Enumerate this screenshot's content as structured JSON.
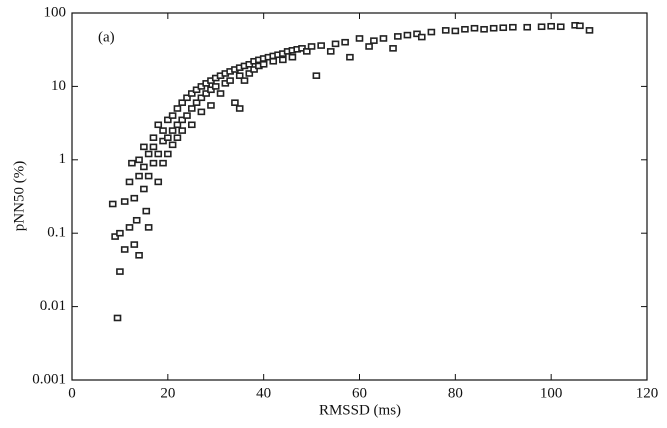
{
  "chart_data": {
    "type": "scatter",
    "annotation": "(a)",
    "x_label": "RMSSD (ms)",
    "y_label": "pNN50 (%)",
    "xlim": [
      0,
      120
    ],
    "xticks": [
      0,
      20,
      40,
      60,
      80,
      100,
      120
    ],
    "ylim": [
      0.001,
      100
    ],
    "yticks": [
      0.001,
      0.01,
      0.1,
      1,
      10,
      100
    ],
    "ylog": true,
    "color": "#222222",
    "x": [
      8.5,
      9,
      9.5,
      10,
      10,
      11,
      11,
      12,
      12,
      12.5,
      13,
      13,
      13.5,
      14,
      14,
      14,
      15,
      15,
      15,
      15.5,
      16,
      16,
      16,
      17,
      17,
      17,
      18,
      18,
      18,
      19,
      19,
      19,
      20,
      20,
      20,
      21,
      21,
      21,
      22,
      22,
      22,
      23,
      23,
      23,
      24,
      24,
      25,
      25,
      25,
      26,
      26,
      27,
      27,
      27,
      28,
      28,
      29,
      29,
      29,
      30,
      30,
      31,
      31,
      32,
      32,
      33,
      33,
      34,
      34,
      35,
      35,
      35,
      36,
      36,
      37,
      37,
      38,
      38,
      39,
      39,
      40,
      40,
      41,
      42,
      42,
      43,
      44,
      44,
      45,
      46,
      46,
      47,
      48,
      49,
      50,
      51,
      52,
      54,
      55,
      57,
      58,
      60,
      62,
      63,
      65,
      67,
      68,
      70,
      72,
      73,
      75,
      78,
      80,
      82,
      84,
      86,
      88,
      90,
      92,
      95,
      98,
      100,
      102,
      105,
      106,
      108
    ],
    "values": [
      0.25,
      0.09,
      0.007,
      0.03,
      0.1,
      0.27,
      0.06,
      0.12,
      0.5,
      0.9,
      0.3,
      0.07,
      0.15,
      0.05,
      0.6,
      1.0,
      0.4,
      0.8,
      1.5,
      0.2,
      0.12,
      1.2,
      0.6,
      2,
      0.9,
      1.5,
      3,
      1.2,
      0.5,
      2.5,
      1.8,
      0.9,
      3.5,
      2,
      1.2,
      4,
      2.5,
      1.6,
      5,
      3,
      2,
      6,
      3.5,
      2.5,
      7,
      4,
      8,
      5,
      3,
      9,
      6,
      10,
      7,
      4.5,
      11,
      8,
      12,
      9,
      5.5,
      13,
      10,
      14,
      8,
      15,
      11,
      16,
      12,
      17,
      6,
      18,
      14,
      5,
      19,
      12,
      20,
      15,
      22,
      17,
      23,
      19,
      24,
      20,
      25,
      26,
      22,
      27,
      28,
      23,
      30,
      31,
      25,
      32,
      33,
      30,
      35,
      14,
      36,
      30,
      38,
      40,
      25,
      45,
      35,
      42,
      45,
      33,
      48,
      50,
      52,
      47,
      55,
      58,
      57,
      60,
      62,
      60,
      62,
      63,
      64,
      64,
      65,
      66,
      65,
      68,
      67,
      58
    ]
  }
}
